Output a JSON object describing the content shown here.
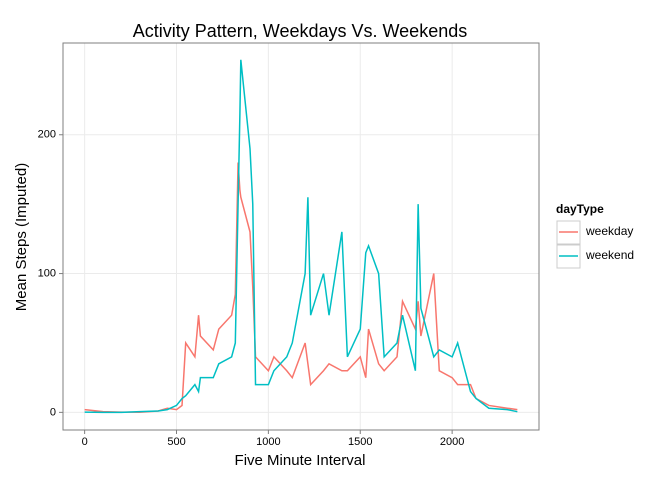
{
  "chart_data": {
    "type": "line",
    "title": "Activity Pattern, Weekdays Vs. Weekends",
    "x_label": "Five Minute Interval",
    "y_label": "Mean Steps (Imputed)",
    "legend_title": "dayType",
    "legend_position": "right",
    "grid": true,
    "x": [
      0,
      100,
      200,
      300,
      400,
      450,
      500,
      530,
      550,
      600,
      620,
      630,
      700,
      730,
      800,
      820,
      835,
      845,
      850,
      900,
      915,
      930,
      1000,
      1030,
      1100,
      1130,
      1200,
      1215,
      1230,
      1300,
      1330,
      1400,
      1430,
      1500,
      1530,
      1545,
      1600,
      1630,
      1700,
      1730,
      1800,
      1815,
      1830,
      1900,
      1930,
      2000,
      2030,
      2100,
      2130,
      2200,
      2300,
      2355
    ],
    "series": [
      {
        "name": "weekday",
        "color": "#F8766D",
        "values": [
          2,
          0.5,
          0.2,
          0.1,
          1,
          3,
          2,
          5,
          50,
          40,
          70,
          55,
          45,
          60,
          70,
          85,
          180,
          160,
          155,
          130,
          90,
          40,
          30,
          40,
          30,
          25,
          50,
          35,
          20,
          30,
          35,
          30,
          30,
          40,
          25,
          60,
          35,
          30,
          40,
          80,
          60,
          80,
          55,
          100,
          30,
          25,
          20,
          20,
          10,
          5,
          3,
          2
        ]
      },
      {
        "name": "weekend",
        "color": "#00BFC4",
        "values": [
          0.2,
          0,
          0,
          0.5,
          1,
          2,
          5,
          10,
          12,
          20,
          15,
          25,
          25,
          35,
          40,
          50,
          150,
          215,
          254,
          190,
          150,
          20,
          20,
          30,
          40,
          50,
          100,
          155,
          70,
          100,
          70,
          130,
          40,
          60,
          115,
          120,
          100,
          40,
          50,
          70,
          30,
          150,
          75,
          40,
          45,
          40,
          50,
          15,
          10,
          3,
          2,
          0.5
        ]
      }
    ],
    "xlim": [
      -117.75,
      2472.75
    ],
    "ylim": [
      -12.7,
      266.1
    ],
    "xticks": [
      0,
      500,
      1000,
      1500,
      2000
    ],
    "yticks": [
      0,
      100,
      200
    ]
  }
}
